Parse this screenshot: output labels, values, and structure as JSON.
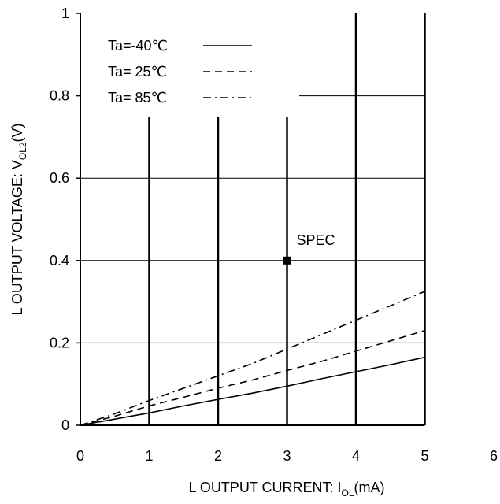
{
  "chart_data": {
    "type": "line",
    "title": "",
    "xlabel": {
      "main": "L OUTPUT CURRENT: I",
      "sub": "OL",
      "suffix": "(mA)"
    },
    "ylabel": {
      "main": "L OUTPUT VOLTAGE: V",
      "sub": "OL2",
      "suffix": "(V)"
    },
    "xlim": [
      0,
      6
    ],
    "ylim": [
      0,
      1
    ],
    "x_ticks": [
      0,
      1,
      2,
      3,
      4,
      5,
      6
    ],
    "x_tick_labels": [
      "0",
      "1",
      "2",
      "3",
      "4",
      "5",
      "6"
    ],
    "y_ticks": [
      0,
      0.2,
      0.4,
      0.6,
      0.8,
      1
    ],
    "y_tick_labels": [
      "0",
      "0.2",
      "0.4",
      "0.6",
      "0.8",
      "1"
    ],
    "grid": true,
    "legend_position": "top-left",
    "series": [
      {
        "name": "Ta=-40℃",
        "style": "solid",
        "x": [
          0,
          0.5,
          1,
          1.5,
          2,
          2.5,
          3,
          3.5,
          4,
          4.5,
          5
        ],
        "y": [
          0,
          0.015,
          0.03,
          0.047,
          0.063,
          0.078,
          0.095,
          0.113,
          0.13,
          0.147,
          0.165
        ]
      },
      {
        "name": "Ta= 25℃",
        "style": "dashed",
        "x": [
          0,
          0.5,
          1,
          1.5,
          2,
          2.5,
          3,
          3.5,
          4,
          4.5,
          5
        ],
        "y": [
          0,
          0.022,
          0.047,
          0.068,
          0.09,
          0.11,
          0.133,
          0.155,
          0.18,
          0.205,
          0.23
        ]
      },
      {
        "name": "Ta= 85℃",
        "style": "dashdot",
        "x": [
          0,
          0.5,
          1,
          1.5,
          2,
          2.5,
          3,
          3.5,
          4,
          4.5,
          5
        ],
        "y": [
          0,
          0.028,
          0.06,
          0.09,
          0.12,
          0.15,
          0.185,
          0.22,
          0.255,
          0.29,
          0.325
        ]
      }
    ],
    "annotations": [
      {
        "label": "SPEC",
        "x": 3,
        "y": 0.4
      }
    ]
  }
}
